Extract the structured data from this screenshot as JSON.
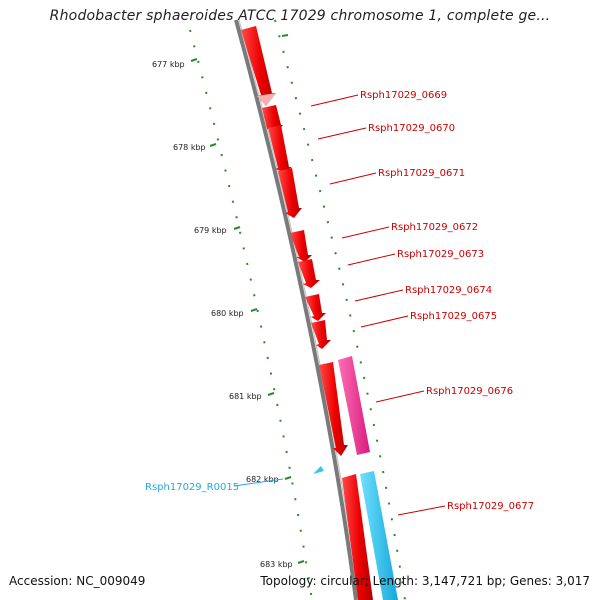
{
  "title": "Rhodobacter sphaeroides ATCC 17029 chromosome 1, complete ge...",
  "footer": {
    "accession": "Accession: NC_009049",
    "summary": "Topology: circular; Length: 3,147,721 bp; Genes: 3,017"
  },
  "colors": {
    "gene": "#ee0000",
    "gene_highlight": "#f06b6b",
    "pink_gene": "#ee2a8f",
    "rna_gene": "#33c7ee",
    "label_red": "#cc0000",
    "label_cyan": "#22aadd",
    "tick_green": "#2a8a2a",
    "backbone": "#7a7a7a"
  },
  "scale_labels": [
    "677 kbp",
    "678 kbp",
    "679 kbp",
    "680 kbp",
    "681 kbp",
    "682 kbp",
    "683 kbp"
  ],
  "gene_labels": [
    "Rsph17029_0669",
    "Rsph17029_0670",
    "Rsph17029_0671",
    "Rsph17029_0672",
    "Rsph17029_0673",
    "Rsph17029_0674",
    "Rsph17029_0675",
    "Rsph17029_0676",
    "Rsph17029_0677",
    "Rsph17029_R0015"
  ]
}
